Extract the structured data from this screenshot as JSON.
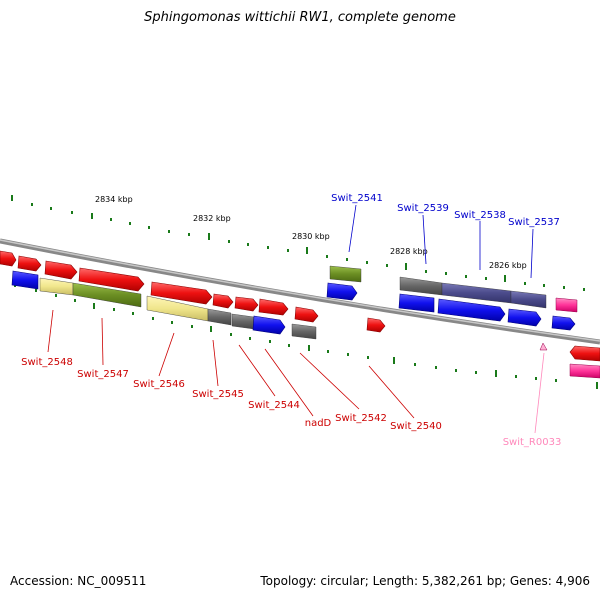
{
  "title": "Sphingomonas wittichii RW1, complete genome",
  "footer": {
    "accession": "Accession: NC_009511",
    "topology": "Topology: circular; Length: 5,382,261 bp; Genes: 4,906"
  },
  "scale_labels": [
    "2834 kbp",
    "2832 kbp",
    "2830 kbp",
    "2828 kbp",
    "2826 kbp"
  ],
  "gene_labels_top": [
    "Swit_2541",
    "Swit_2539",
    "Swit_2538",
    "Swit_2537"
  ],
  "gene_labels_bottom": [
    "Swit_2548",
    "Swit_2547",
    "Swit_2546",
    "Swit_2545",
    "Swit_2544",
    "nadD",
    "Swit_2542",
    "Swit_2540"
  ],
  "rna_labels": [
    "Swit_R0033"
  ],
  "colors": {
    "backbone": "#888888",
    "cds_forward": "#ee1111",
    "cds_reverse": "#1111ee",
    "rna": "#ff66aa",
    "tick": "#1a7a1a",
    "label_top": "#0000cc",
    "label_bottom": "#cc0000",
    "label_rna": "#ff88bb",
    "cog_olive": "#6b8e23",
    "cog_khaki": "#f0e68c",
    "cog_gray": "#666666",
    "cog_slate": "#4b4b8b"
  }
}
